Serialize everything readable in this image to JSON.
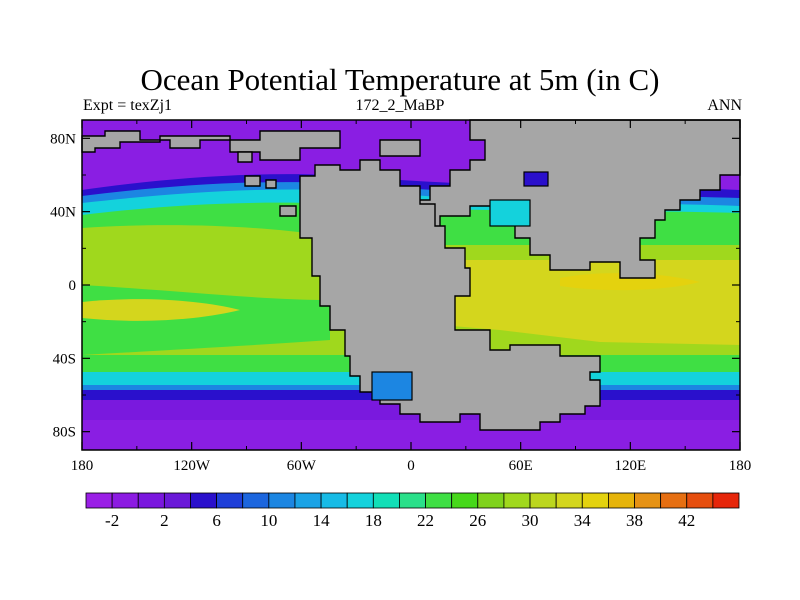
{
  "plot": {
    "title": "Ocean Potential Temperature at 5m (in C)",
    "left_label": "Expt = texZj1",
    "center_label": "172_2_MaBP",
    "right_label": "ANN"
  },
  "chart_data": {
    "type": "heatmap",
    "title": "Ocean Potential Temperature at 5m (in C)",
    "units": "C",
    "x_range": [
      -180,
      180
    ],
    "y_range": [
      -90,
      90
    ],
    "x_ticks": [
      {
        "value": -180,
        "label": "180"
      },
      {
        "value": -120,
        "label": "120W"
      },
      {
        "value": -60,
        "label": "60W"
      },
      {
        "value": 0,
        "label": "0"
      },
      {
        "value": 60,
        "label": "60E"
      },
      {
        "value": 120,
        "label": "120E"
      },
      {
        "value": 180,
        "label": "180"
      }
    ],
    "y_ticks": [
      {
        "value": 80,
        "label": "80N"
      },
      {
        "value": 40,
        "label": "40N"
      },
      {
        "value": 0,
        "label": "0"
      },
      {
        "value": -40,
        "label": "40S"
      },
      {
        "value": -80,
        "label": "80S"
      }
    ],
    "land_color": "#a6a6a6",
    "colorbar": {
      "min": -4,
      "max": 44,
      "step": 2,
      "labels": [
        "-2",
        "2",
        "6",
        "10",
        "14",
        "18",
        "22",
        "26",
        "30",
        "34",
        "38",
        "42"
      ],
      "colors": [
        "#9a1fe6",
        "#8c1be2",
        "#7a17de",
        "#6a19d8",
        "#2a10cc",
        "#1f3fd8",
        "#1c66de",
        "#1c86e2",
        "#1aa3e6",
        "#17bbe6",
        "#14d2dc",
        "#12dfb7",
        "#2ae08a",
        "#3fdf44",
        "#46d81a",
        "#7fd21c",
        "#a0d81d",
        "#bcd61e",
        "#d4d61d",
        "#e4d20e",
        "#e6b40a",
        "#e69214",
        "#e66f12",
        "#e64e0e",
        "#e6260a"
      ]
    }
  }
}
